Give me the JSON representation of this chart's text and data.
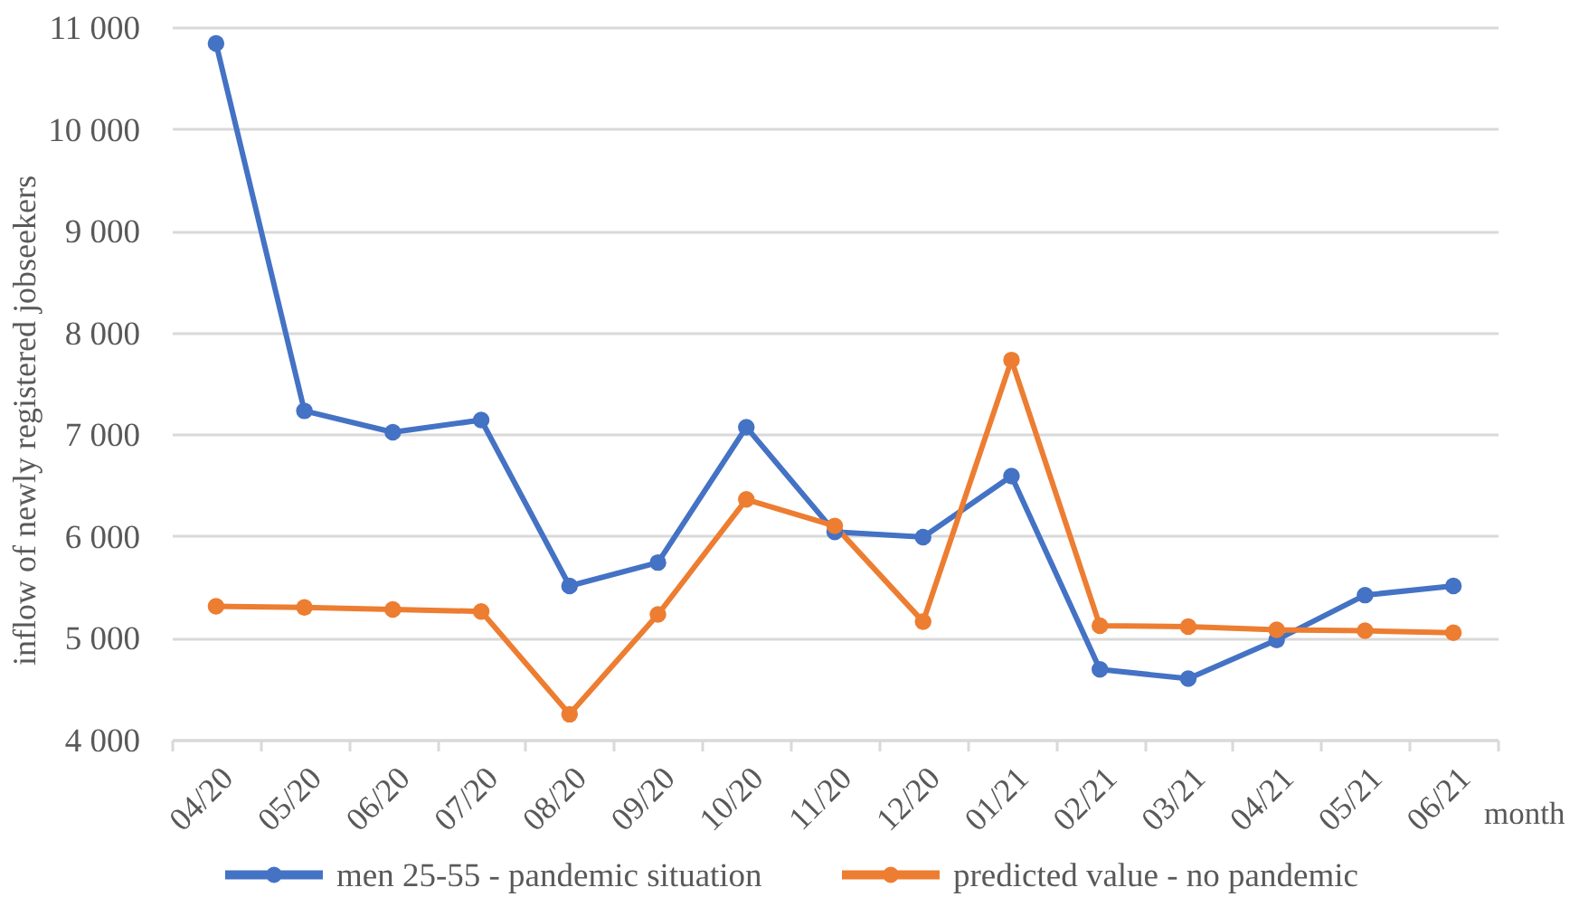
{
  "chart_data": {
    "type": "line",
    "categories": [
      "04/20",
      "05/20",
      "06/20",
      "07/20",
      "08/20",
      "09/20",
      "10/20",
      "11/20",
      "12/20",
      "01/21",
      "02/21",
      "03/21",
      "04/21",
      "05/21",
      "06/21"
    ],
    "series": [
      {
        "name": "men 25-55  - pandemic situation",
        "color": "#4472c4",
        "values": [
          10840,
          7230,
          7020,
          7140,
          5510,
          5740,
          7070,
          6040,
          5990,
          6590,
          4690,
          4600,
          4980,
          5420,
          5510
        ]
      },
      {
        "name": "predicted value - no pandemic",
        "color": "#ed7d31",
        "values": [
          5310,
          5300,
          5280,
          5260,
          4250,
          5230,
          6360,
          6100,
          5160,
          7730,
          5120,
          5110,
          5080,
          5070,
          5050
        ]
      }
    ],
    "xlabel": "month",
    "ylabel": "inflow of newly registered jobseekers",
    "ylim": [
      4000,
      11000
    ],
    "yticks": [
      {
        "value": 4000,
        "label": "4 000"
      },
      {
        "value": 5000,
        "label": "5 000"
      },
      {
        "value": 6000,
        "label": "6 000"
      },
      {
        "value": 7000,
        "label": "7 000"
      },
      {
        "value": 8000,
        "label": "8 000"
      },
      {
        "value": 9000,
        "label": "9 000"
      },
      {
        "value": 10000,
        "label": "10 000"
      },
      {
        "value": 11000,
        "label": "11 000"
      }
    ],
    "grid": "y",
    "legend": "bottom",
    "marker": "circle"
  }
}
